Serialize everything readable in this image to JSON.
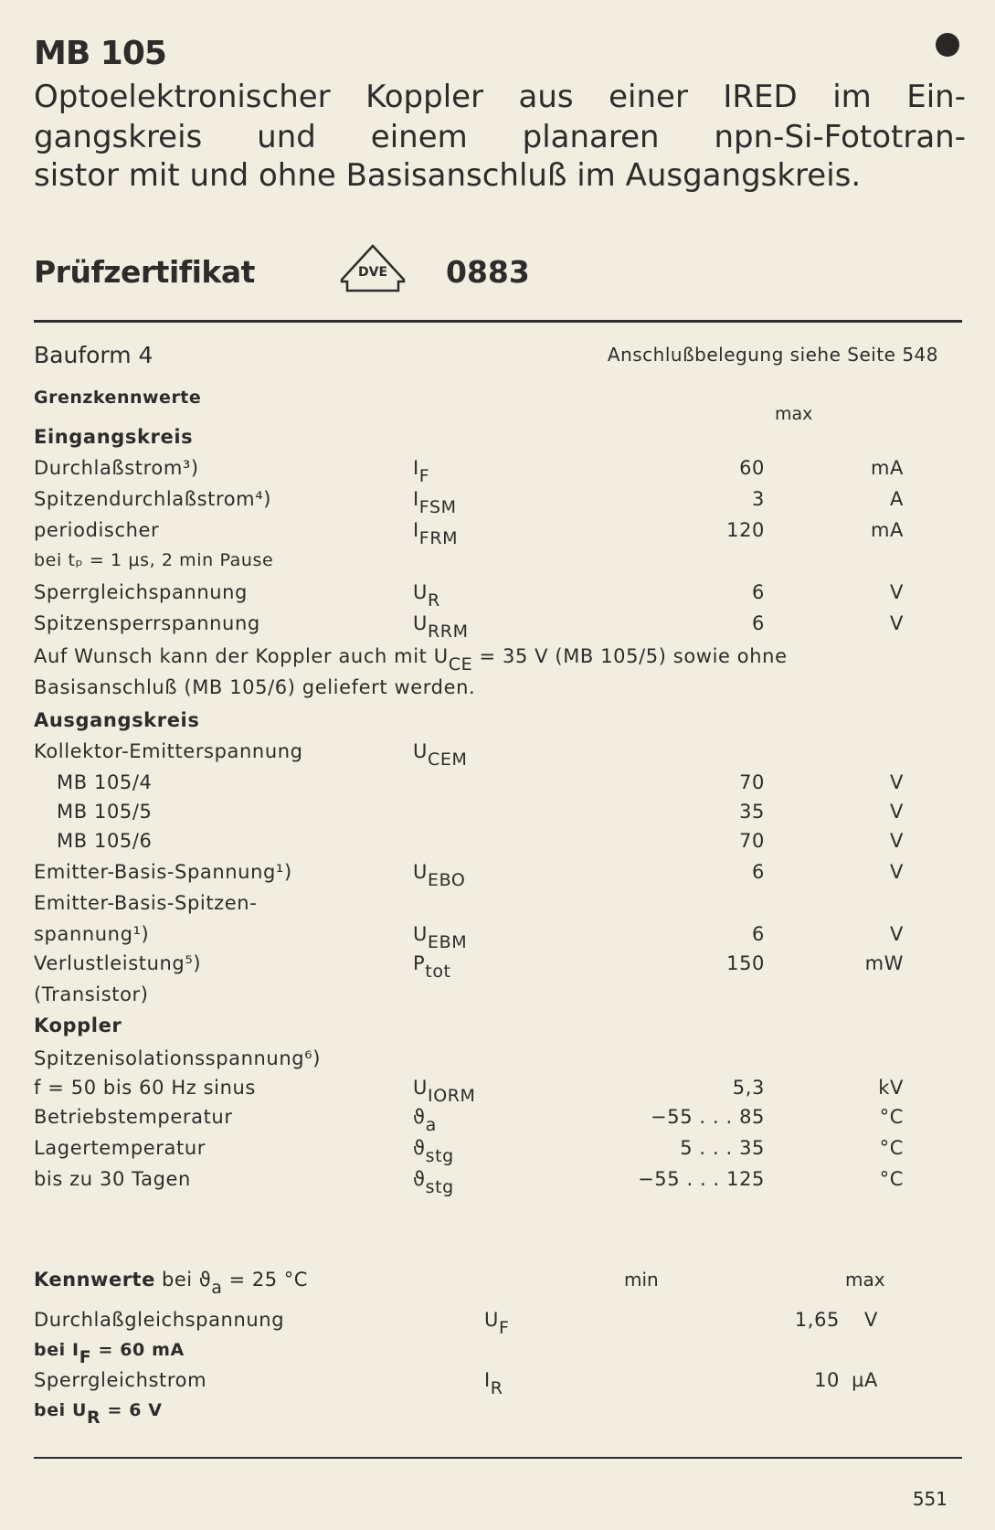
{
  "header": {
    "title": "MB 105",
    "intro_lines": [
      "Optoelektronischer Koppler aus einer IRED im Ein-",
      "gangskreis und einem planaren npn-Si-Fototran-",
      "sistor mit und ohne Basisanschluß im Ausgangskreis."
    ],
    "cert_label": "Prüfzertifikat",
    "cert_logo": "DVE",
    "cert_number": "0883"
  },
  "bauform": "Bauform 4",
  "anschluss": "Anschlußbelegung siehe Seite 548",
  "limits": {
    "heading": "Grenzkennwerte",
    "max_header": "max"
  },
  "rows": [
    {
      "label": "Eingangskreis",
      "style": "bold"
    },
    {
      "label": "Durchlaßstrom³)",
      "sym": "I",
      "sub": "F",
      "val": "60",
      "unit": "mA"
    },
    {
      "label": "Spitzendurchlaßstrom⁴)",
      "sym": "I",
      "sub": "FSM",
      "val": "3",
      "unit": "A"
    },
    {
      "label": "periodischer",
      "sym": "I",
      "sub": "FRM",
      "val": "120",
      "unit": "mA"
    },
    {
      "label": "bei tₚ = 1 µs, 2 min Pause",
      "style": "small"
    },
    {
      "label": "Sperrgleichspannung",
      "sym": "U",
      "sub": "R",
      "val": "6",
      "unit": "V"
    },
    {
      "label": "Spitzensperrspannung",
      "sym": "U",
      "sub": "RRM",
      "val": "6",
      "unit": "V"
    },
    {
      "label": "Auf Wunsch kann der Koppler auch mit U",
      "sub2": "CE",
      "suffix": "= 35 V (MB 105/5) sowie ohne",
      "style": "note"
    },
    {
      "label": "Basisanschluß (MB 105/6) geliefert werden."
    },
    {
      "label": "Ausgangskreis",
      "style": "bold"
    },
    {
      "label": "Kollektor-Emitterspannung",
      "sym": "U",
      "sub": "CEM"
    },
    {
      "label": "MB 105/4",
      "style": "indent",
      "val": "70",
      "unit": "V"
    },
    {
      "label": "MB 105/5",
      "style": "indent",
      "val": "35",
      "unit": "V"
    },
    {
      "label": "MB 105/6",
      "style": "indent",
      "val": "70",
      "unit": "V"
    },
    {
      "label": "Emitter-Basis-Spannung¹)",
      "sym": "U",
      "sub": "EBO",
      "val": "6",
      "unit": "V"
    },
    {
      "label": "Emitter-Basis-Spitzen-"
    },
    {
      "label": "spannung¹)",
      "sym": "U",
      "sub": "EBM",
      "val": "6",
      "unit": "V"
    },
    {
      "label": "Verlustleistung⁵)",
      "sym": "P",
      "sub": "tot",
      "val": "150",
      "unit": "mW"
    },
    {
      "label": "(Transistor)"
    },
    {
      "label": "Koppler",
      "style": "bold"
    },
    {
      "label": "Spitzenisolationsspannung⁶)"
    },
    {
      "label": "f = 50 bis 60 Hz sinus",
      "sym": "U",
      "sub": "IORM",
      "val": "5,3",
      "unit": "kV"
    },
    {
      "label": "Betriebstemperatur",
      "sym": "ϑ",
      "sub": "a",
      "val": "−55 . . . 85",
      "unit": "°C"
    },
    {
      "label": "Lagertemperatur",
      "sym": "ϑ",
      "sub": "stg",
      "val": "5 . . . 35",
      "unit": "°C"
    },
    {
      "label": "bis zu 30 Tagen",
      "sym": "ϑ",
      "sub": "stg",
      "val": "−55 . . . 125",
      "unit": "°C"
    }
  ],
  "characteristics": {
    "heading_bold": "Kennwerte",
    "heading_rest": "bei ϑ",
    "heading_sub": "a",
    "heading_tail": "= 25 °C",
    "min_header": "min",
    "max_header": "max",
    "rows": [
      {
        "label": "Durchlaßgleichspannung",
        "sym": "U",
        "sub": "F",
        "val": "1,65",
        "unit": "V"
      },
      {
        "label": "bei I",
        "sub2": "F",
        "suffix": "= 60 mA",
        "style": "small-note"
      },
      {
        "label": "Sperrgleichstrom",
        "sym": "I",
        "sub": "R",
        "val": "10",
        "unit": "µA"
      },
      {
        "label": "bei U",
        "sub2": "R",
        "suffix": "= 6 V",
        "style": "small-note"
      }
    ]
  },
  "page_number": "551"
}
